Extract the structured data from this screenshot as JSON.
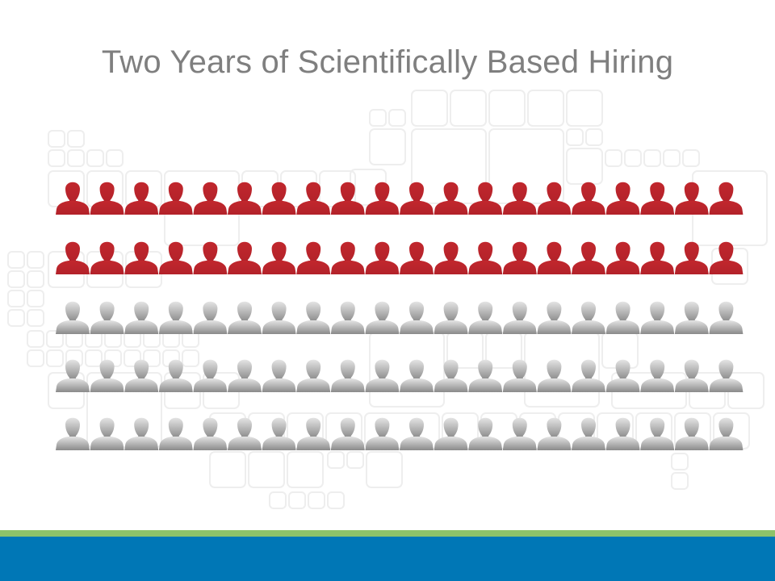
{
  "slide": {
    "title": "Two Years of Scientifically Based Hiring"
  },
  "people_chart": {
    "rows": 5,
    "per_row": 20,
    "total": 100,
    "highlighted": 40,
    "highlighted_icon": "person-icon-red",
    "other_icon": "person-icon-gray"
  },
  "colors": {
    "title": "#7f7f7f",
    "highlight": "#c1272d",
    "highlight_dark": "#9e1b20",
    "gray_light": "#dcdcdc",
    "gray_dark": "#8a8a8a",
    "pattern_stroke": "#eeeeee",
    "bar_green": "#8dc26a",
    "bar_blue": "#0077b6"
  }
}
